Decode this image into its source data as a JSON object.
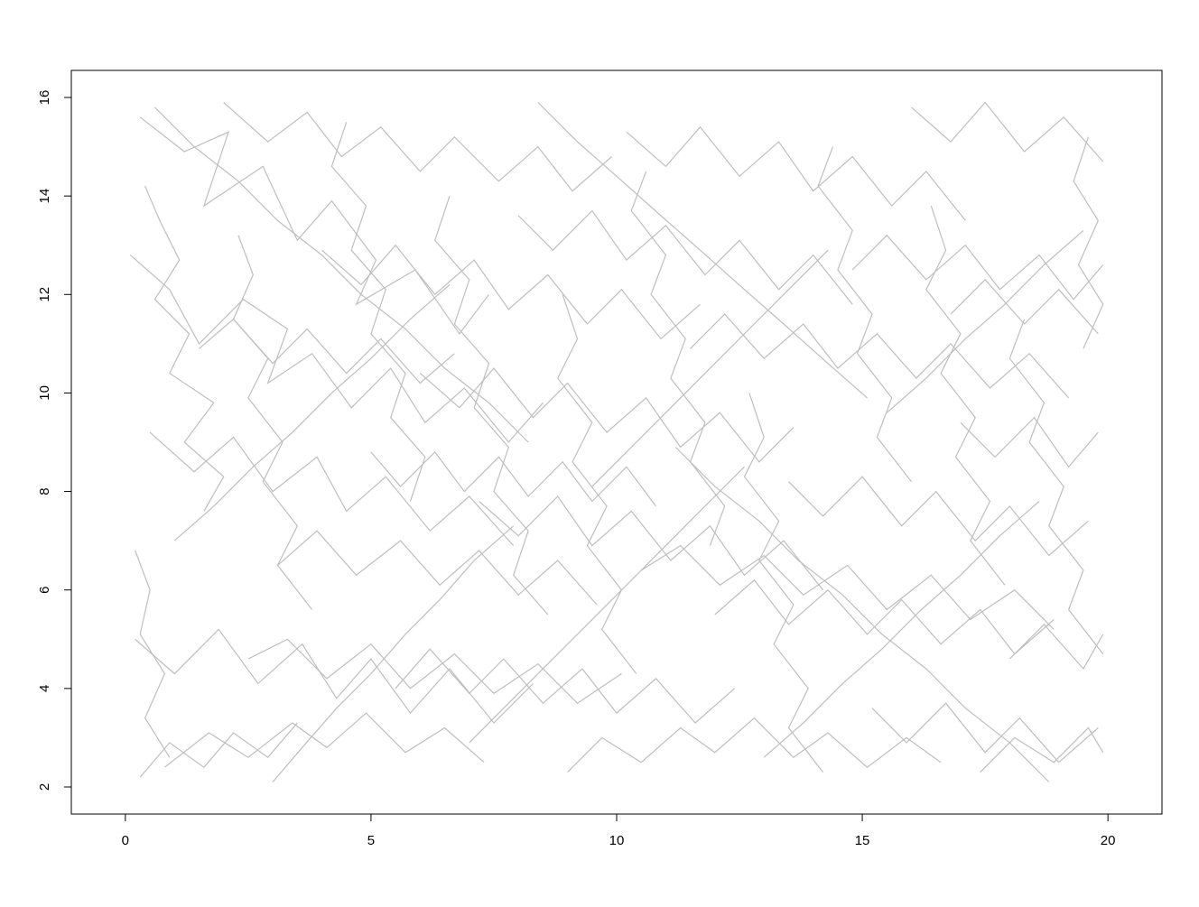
{
  "chart_data": {
    "type": "line",
    "title": "",
    "xlabel": "",
    "ylabel": "",
    "xlim": [
      -1.1,
      21.1
    ],
    "ylim": [
      1.45,
      16.55
    ],
    "x_ticks": [
      0,
      5,
      10,
      15,
      20
    ],
    "y_ticks": [
      2,
      4,
      6,
      8,
      10,
      12,
      14,
      16
    ],
    "x_tick_labels": [
      "0",
      "5",
      "10",
      "15",
      "20"
    ],
    "y_tick_labels": [
      "2",
      "4",
      "6",
      "8",
      "10",
      "12",
      "14",
      "16"
    ],
    "grid": false,
    "legend": "none",
    "line_color": "#BEBEBE",
    "series": [
      {
        "x": [
          0.3,
          1.2,
          2.1,
          1.6,
          2.8,
          3.5,
          4.2,
          5.1,
          4.7,
          5.9,
          6.8,
          7.4
        ],
        "y": [
          15.6,
          14.9,
          15.3,
          13.8,
          14.6,
          13.1,
          13.9,
          12.7,
          11.8,
          12.5,
          11.2,
          12.0
        ]
      },
      {
        "x": [
          0.1,
          0.9,
          1.5,
          2.4,
          3.3,
          2.9,
          3.8,
          4.6,
          5.4,
          6.1,
          6.9,
          7.8,
          8.5
        ],
        "y": [
          12.8,
          12.1,
          11.0,
          11.9,
          11.3,
          10.2,
          10.8,
          9.7,
          10.5,
          9.4,
          10.1,
          9.0,
          9.8
        ]
      },
      {
        "x": [
          0.5,
          1.4,
          2.2,
          3.0,
          3.9,
          4.5,
          5.3,
          6.2,
          7.0,
          7.9
        ],
        "y": [
          9.2,
          8.4,
          9.1,
          8.0,
          8.7,
          7.6,
          8.3,
          7.2,
          7.9,
          6.9
        ]
      },
      {
        "x": [
          0.2,
          1.0,
          1.9,
          2.7,
          3.6,
          4.3,
          5.0,
          5.8,
          6.6,
          7.5,
          8.3
        ],
        "y": [
          5.0,
          4.3,
          5.2,
          4.1,
          4.9,
          3.8,
          4.6,
          3.5,
          4.4,
          3.3,
          4.1
        ]
      },
      {
        "x": [
          0.8,
          1.7,
          2.5,
          3.4,
          4.1,
          4.9,
          5.7,
          6.5,
          7.3
        ],
        "y": [
          2.4,
          3.1,
          2.6,
          3.3,
          2.8,
          3.5,
          2.7,
          3.2,
          2.5
        ]
      },
      {
        "x": [
          2.0,
          2.9,
          3.7,
          4.4,
          5.2,
          6.0,
          6.7,
          7.6,
          8.4,
          9.1,
          9.9
        ],
        "y": [
          15.9,
          15.1,
          15.7,
          14.8,
          15.4,
          14.5,
          15.2,
          14.3,
          15.0,
          14.1,
          14.8
        ]
      },
      {
        "x": [
          4.0,
          4.8,
          5.5,
          6.3,
          7.1,
          7.8,
          8.6,
          9.4,
          10.1,
          10.9,
          11.7
        ],
        "y": [
          12.9,
          12.2,
          13.0,
          12.0,
          12.7,
          11.7,
          12.4,
          11.4,
          12.1,
          11.1,
          11.8
        ]
      },
      {
        "x": [
          3.1,
          3.9,
          4.7,
          5.6,
          6.4,
          7.2,
          8.0,
          8.8,
          9.6
        ],
        "y": [
          6.5,
          7.2,
          6.3,
          7.0,
          6.1,
          6.8,
          5.9,
          6.6,
          5.7
        ]
      },
      {
        "x": [
          5.5,
          6.2,
          7.0,
          7.7,
          8.5,
          9.3,
          10.0,
          10.8,
          11.6,
          12.4
        ],
        "y": [
          4.0,
          4.8,
          3.9,
          4.6,
          3.7,
          4.4,
          3.5,
          4.2,
          3.3,
          4.0
        ]
      },
      {
        "x": [
          6.0,
          6.8,
          7.5,
          8.3,
          9.0,
          9.8,
          10.6,
          11.3,
          12.1,
          12.9,
          13.6
        ],
        "y": [
          10.4,
          9.7,
          10.5,
          9.5,
          10.2,
          9.2,
          9.9,
          8.9,
          9.6,
          8.6,
          9.3
        ]
      },
      {
        "x": [
          8.0,
          8.7,
          9.5,
          10.2,
          11.0,
          11.8,
          12.5,
          13.3,
          14.0,
          14.8
        ],
        "y": [
          13.6,
          12.9,
          13.7,
          12.7,
          13.4,
          12.4,
          13.1,
          12.1,
          12.8,
          11.8
        ]
      },
      {
        "x": [
          7.2,
          8.0,
          8.8,
          9.5,
          10.3,
          11.1,
          11.9,
          12.6,
          13.4,
          14.2
        ],
        "y": [
          7.8,
          7.1,
          7.9,
          6.9,
          7.6,
          6.6,
          7.3,
          6.3,
          7.0,
          6.0
        ]
      },
      {
        "x": [
          9.0,
          9.7,
          10.5,
          11.3,
          12.0,
          12.8,
          13.6,
          14.3,
          15.1,
          15.9,
          16.6
        ],
        "y": [
          2.3,
          3.0,
          2.5,
          3.2,
          2.7,
          3.4,
          2.6,
          3.1,
          2.4,
          3.0,
          2.5
        ]
      },
      {
        "x": [
          10.2,
          11.0,
          11.7,
          12.5,
          13.3,
          14.0,
          14.8,
          15.6,
          16.3,
          17.1
        ],
        "y": [
          15.3,
          14.6,
          15.4,
          14.4,
          15.1,
          14.1,
          14.8,
          13.8,
          14.5,
          13.5
        ]
      },
      {
        "x": [
          11.5,
          12.2,
          13.0,
          13.8,
          14.5,
          15.3,
          16.1,
          16.8,
          17.6,
          18.4,
          19.2
        ],
        "y": [
          10.9,
          11.6,
          10.7,
          11.4,
          10.5,
          11.2,
          10.3,
          11.0,
          10.1,
          10.8,
          9.9
        ]
      },
      {
        "x": [
          12.0,
          12.8,
          13.5,
          14.3,
          15.1,
          15.8,
          16.6,
          17.4,
          18.1,
          18.9
        ],
        "y": [
          5.5,
          6.2,
          5.3,
          6.0,
          5.1,
          5.8,
          4.9,
          5.6,
          4.7,
          5.4
        ]
      },
      {
        "x": [
          13.5,
          14.2,
          15.0,
          15.8,
          16.5,
          17.3,
          18.0,
          18.8,
          19.6
        ],
        "y": [
          8.2,
          7.5,
          8.3,
          7.3,
          8.0,
          7.0,
          7.7,
          6.7,
          7.4
        ]
      },
      {
        "x": [
          14.8,
          15.5,
          16.3,
          17.1,
          17.8,
          18.6,
          19.3,
          19.9
        ],
        "y": [
          12.5,
          13.2,
          12.3,
          13.0,
          12.1,
          12.8,
          11.9,
          12.6
        ]
      },
      {
        "x": [
          15.2,
          15.9,
          16.7,
          17.5,
          18.2,
          19.0,
          19.8
        ],
        "y": [
          3.6,
          2.9,
          3.7,
          2.7,
          3.4,
          2.5,
          3.2
        ]
      },
      {
        "x": [
          16.0,
          16.8,
          17.5,
          18.3,
          19.1,
          19.9
        ],
        "y": [
          15.8,
          15.1,
          15.9,
          14.9,
          15.6,
          14.7
        ]
      },
      {
        "x": [
          17.0,
          17.7,
          18.5,
          19.2,
          19.8
        ],
        "y": [
          9.4,
          8.7,
          9.5,
          8.5,
          9.2
        ]
      },
      {
        "x": [
          18.0,
          18.7,
          19.5,
          19.9
        ],
        "y": [
          4.6,
          5.3,
          4.4,
          5.1
        ]
      },
      {
        "x": [
          0.4,
          0.7,
          1.1,
          0.6,
          1.3,
          0.9,
          1.8,
          1.2,
          2.0,
          1.6
        ],
        "y": [
          14.2,
          13.5,
          12.7,
          11.9,
          11.2,
          10.4,
          9.8,
          9.0,
          8.3,
          7.6
        ]
      },
      {
        "x": [
          2.3,
          2.6,
          2.2,
          2.9,
          2.5,
          3.2,
          2.8,
          3.5,
          3.1,
          3.8
        ],
        "y": [
          13.2,
          12.4,
          11.5,
          10.7,
          9.9,
          9.0,
          8.2,
          7.3,
          6.5,
          5.6
        ]
      },
      {
        "x": [
          4.5,
          4.2,
          4.9,
          4.6,
          5.3,
          5.0,
          5.7,
          5.4,
          6.1,
          5.8
        ],
        "y": [
          15.5,
          14.6,
          13.8,
          12.9,
          12.1,
          11.2,
          10.4,
          9.5,
          8.7,
          7.8
        ]
      },
      {
        "x": [
          6.6,
          6.3,
          7.0,
          6.7,
          7.4,
          7.1,
          7.8,
          7.5,
          8.2,
          7.9,
          8.6
        ],
        "y": [
          14.0,
          13.1,
          12.3,
          11.4,
          10.6,
          9.7,
          8.9,
          8.0,
          7.2,
          6.3,
          5.5
        ]
      },
      {
        "x": [
          8.9,
          9.2,
          8.8,
          9.5,
          9.1,
          9.8,
          9.4,
          10.1,
          9.7,
          10.4
        ],
        "y": [
          12.0,
          11.1,
          10.3,
          9.4,
          8.6,
          7.7,
          6.9,
          6.0,
          5.2,
          4.3
        ]
      },
      {
        "x": [
          10.6,
          10.3,
          11.0,
          10.7,
          11.4,
          11.1,
          11.8,
          11.5,
          12.2,
          11.9
        ],
        "y": [
          14.5,
          13.7,
          12.8,
          12.0,
          11.1,
          10.3,
          9.4,
          8.6,
          7.7,
          6.9
        ]
      },
      {
        "x": [
          12.7,
          13.0,
          12.6,
          13.3,
          12.9,
          13.6,
          13.2,
          13.9,
          13.5,
          14.2
        ],
        "y": [
          10.0,
          9.1,
          8.3,
          7.4,
          6.6,
          5.7,
          4.9,
          4.0,
          3.2,
          2.3
        ]
      },
      {
        "x": [
          14.4,
          14.1,
          14.8,
          14.5,
          15.2,
          14.9,
          15.6,
          15.3,
          16.0
        ],
        "y": [
          15.0,
          14.2,
          13.3,
          12.5,
          11.6,
          10.8,
          9.9,
          9.1,
          8.2
        ]
      },
      {
        "x": [
          16.4,
          16.7,
          16.3,
          17.0,
          16.6,
          17.3,
          16.9,
          17.6,
          17.2,
          17.9
        ],
        "y": [
          13.8,
          12.9,
          12.1,
          11.2,
          10.4,
          9.5,
          8.7,
          7.8,
          7.0,
          6.1
        ]
      },
      {
        "x": [
          18.3,
          18.0,
          18.7,
          18.4,
          19.1,
          18.8,
          19.5,
          19.2,
          19.9
        ],
        "y": [
          11.5,
          10.7,
          9.8,
          9.0,
          8.1,
          7.3,
          6.4,
          5.6,
          4.7
        ]
      },
      {
        "x": [
          19.6,
          19.3,
          19.8,
          19.4,
          19.9,
          19.5
        ],
        "y": [
          15.2,
          14.3,
          13.5,
          12.6,
          11.8,
          10.9
        ]
      },
      {
        "x": [
          0.2,
          0.5,
          0.3,
          0.8,
          0.4,
          0.9
        ],
        "y": [
          6.8,
          6.0,
          5.1,
          4.3,
          3.4,
          2.6
        ]
      },
      {
        "x": [
          3.0,
          3.6,
          4.3,
          5.0,
          5.7,
          6.4,
          7.1,
          7.9
        ],
        "y": [
          2.1,
          2.8,
          3.6,
          4.3,
          5.1,
          5.8,
          6.6,
          7.3
        ]
      },
      {
        "x": [
          1.0,
          1.8,
          2.6,
          3.4,
          4.2,
          5.0,
          5.8,
          6.6
        ],
        "y": [
          7.0,
          7.7,
          8.5,
          9.2,
          10.0,
          10.7,
          11.5,
          12.2
        ]
      },
      {
        "x": [
          7.0,
          7.8,
          8.6,
          9.4,
          10.2,
          11.0,
          11.8,
          12.6
        ],
        "y": [
          2.9,
          3.7,
          4.5,
          5.3,
          6.1,
          6.9,
          7.7,
          8.5
        ]
      },
      {
        "x": [
          9.5,
          10.3,
          11.1,
          11.9,
          12.7,
          13.5,
          14.3
        ],
        "y": [
          8.1,
          8.9,
          9.7,
          10.5,
          11.3,
          12.1,
          12.9
        ]
      },
      {
        "x": [
          13.0,
          13.8,
          14.6,
          15.4,
          16.2,
          17.0,
          17.8,
          18.6
        ],
        "y": [
          2.6,
          3.3,
          4.1,
          4.8,
          5.6,
          6.3,
          7.1,
          7.8
        ]
      },
      {
        "x": [
          15.5,
          16.3,
          17.1,
          17.9,
          18.7,
          19.5
        ],
        "y": [
          9.6,
          10.3,
          11.1,
          11.8,
          12.6,
          13.3
        ]
      },
      {
        "x": [
          0.6,
          1.4,
          2.3,
          3.1,
          4.0,
          4.8,
          5.7,
          6.5,
          7.4,
          8.2
        ],
        "y": [
          15.8,
          15.0,
          14.3,
          13.5,
          12.8,
          12.0,
          11.3,
          10.5,
          9.8,
          9.0
        ]
      },
      {
        "x": [
          8.4,
          9.2,
          10.0,
          10.9,
          11.7,
          12.6,
          13.4,
          14.3,
          15.1
        ],
        "y": [
          15.9,
          15.1,
          14.4,
          13.6,
          12.9,
          12.1,
          11.4,
          10.6,
          9.9
        ]
      },
      {
        "x": [
          11.2,
          12.0,
          12.9,
          13.7,
          14.6,
          15.4,
          16.3,
          17.1,
          18.0,
          18.8
        ],
        "y": [
          8.9,
          8.1,
          7.4,
          6.6,
          5.9,
          5.1,
          4.4,
          3.6,
          2.9,
          2.1
        ]
      },
      {
        "x": [
          2.5,
          3.3,
          4.1,
          5.0,
          5.8,
          6.7,
          7.5,
          8.4,
          9.2,
          10.1
        ],
        "y": [
          4.6,
          5.0,
          4.2,
          4.9,
          4.0,
          4.7,
          3.9,
          4.5,
          3.7,
          4.3
        ]
      },
      {
        "x": [
          10.5,
          11.3,
          12.1,
          13.0,
          13.8,
          14.7,
          15.5,
          16.4,
          17.2,
          18.1,
          18.9
        ],
        "y": [
          6.4,
          6.9,
          6.1,
          6.7,
          5.9,
          6.5,
          5.6,
          6.3,
          5.4,
          6.0,
          5.2
        ]
      },
      {
        "x": [
          1.5,
          2.2,
          3.0,
          3.7,
          4.5,
          5.2,
          6.0,
          6.7
        ],
        "y": [
          10.9,
          11.5,
          10.6,
          11.3,
          10.4,
          11.1,
          10.2,
          10.8
        ]
      },
      {
        "x": [
          16.8,
          17.5,
          18.3,
          19.0,
          19.8
        ],
        "y": [
          11.6,
          12.3,
          11.4,
          12.1,
          11.2
        ]
      },
      {
        "x": [
          0.3,
          0.9,
          1.6,
          2.2,
          2.9,
          3.5
        ],
        "y": [
          2.2,
          2.9,
          2.4,
          3.1,
          2.6,
          3.3
        ]
      },
      {
        "x": [
          17.4,
          18.1,
          18.9,
          19.6,
          19.9
        ],
        "y": [
          2.3,
          3.0,
          2.5,
          3.2,
          2.7
        ]
      },
      {
        "x": [
          5.0,
          5.6,
          6.3,
          6.9,
          7.6,
          8.2,
          8.9,
          9.5,
          10.2,
          10.8
        ],
        "y": [
          8.8,
          8.1,
          8.8,
          8.0,
          8.7,
          7.9,
          8.6,
          7.8,
          8.5,
          7.7
        ]
      }
    ]
  }
}
